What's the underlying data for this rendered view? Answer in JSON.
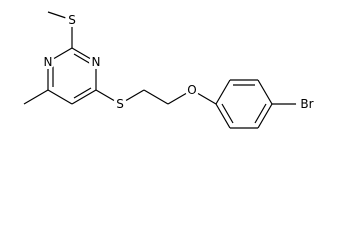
{
  "structure": {
    "atoms": [
      {
        "label": "S"
      },
      {
        "label": "N"
      },
      {
        "label": "N"
      },
      {
        "label": "S"
      },
      {
        "label": "O"
      },
      {
        "label": "Br"
      }
    ]
  }
}
